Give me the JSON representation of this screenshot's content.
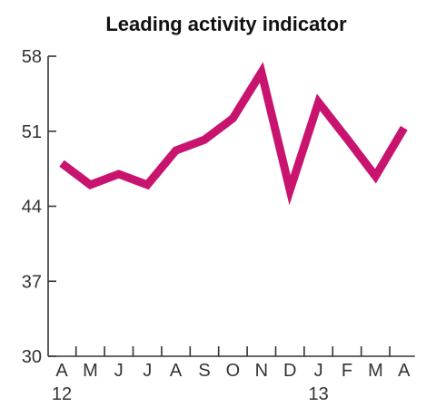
{
  "chart_data": {
    "type": "line",
    "title": "Leading activity indicator",
    "xlabel": "",
    "ylabel": "",
    "categories": [
      "A",
      "M",
      "J",
      "J",
      "A",
      "S",
      "O",
      "N",
      "D",
      "J",
      "F",
      "M",
      "A"
    ],
    "year_labels": [
      {
        "index": 0,
        "label": "12"
      },
      {
        "index": 9,
        "label": "13"
      }
    ],
    "ylim": [
      30,
      58
    ],
    "yticks": [
      30,
      37,
      44,
      51,
      58
    ],
    "grid": false,
    "series": [
      {
        "color": "#c8146e",
        "values": [
          48.0,
          46.0,
          47.0,
          46.0,
          49.2,
          50.2,
          52.2,
          56.5,
          45.5,
          53.7,
          50.3,
          46.8,
          51.3
        ]
      }
    ]
  }
}
